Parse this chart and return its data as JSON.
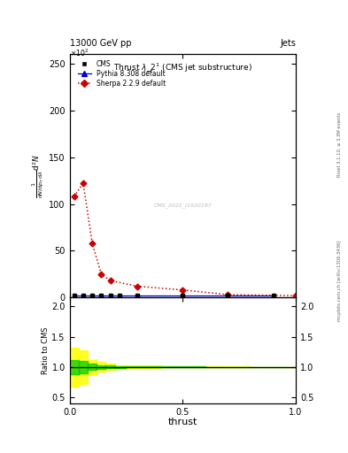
{
  "header_left": "13000 GeV pp",
  "header_right": "Jets",
  "right_label_top": "Rivet 3.1.10, ≥ 3.3M events",
  "right_label_bot": "mcplots.cern.ch [arXiv:1306.3436]",
  "watermark": "CMS_2021_I1920187",
  "xlabel": "thrust",
  "ylabel_main_lines": [
    "mathrm d²N",
    "―――――――――――――――――――――",
    "mathrm d N  mathrm d p_T mathrm d lambda"
  ],
  "ylabel_ratio": "Ratio to CMS",
  "ylim_main": [
    0,
    260
  ],
  "ylim_ratio": [
    0.4,
    2.15
  ],
  "yticks_main": [
    0,
    50,
    100,
    150,
    200,
    250
  ],
  "yticks_ratio": [
    0.5,
    1.0,
    1.5,
    2.0
  ],
  "xlim": [
    0,
    1.0
  ],
  "xticks": [
    0,
    0.5,
    1.0
  ],
  "cms_x": [
    0.02,
    0.06,
    0.1,
    0.14,
    0.18,
    0.22,
    0.3,
    0.5,
    0.7,
    0.9
  ],
  "cms_y": [
    2.5,
    2.5,
    2.5,
    2.5,
    2.5,
    2.5,
    2.5,
    2.5,
    2.5,
    2.5
  ],
  "pythia_x": [
    0.02,
    0.06,
    0.1,
    0.14,
    0.18,
    0.22,
    0.3,
    0.5,
    0.7,
    0.9
  ],
  "pythia_y": [
    2.5,
    2.5,
    2.5,
    2.5,
    2.5,
    2.5,
    2.5,
    2.5,
    2.5,
    2.5
  ],
  "sherpa_x": [
    0.02,
    0.06,
    0.1,
    0.14,
    0.18,
    0.3,
    0.5,
    0.7,
    1.0
  ],
  "sherpa_y": [
    108,
    122,
    58,
    25,
    18,
    12,
    8,
    3,
    2
  ],
  "ratio_yellow_lo": [
    0.68,
    0.72,
    0.88,
    0.92,
    0.95,
    0.97,
    0.98,
    0.99,
    0.995,
    0.998
  ],
  "ratio_yellow_hi": [
    1.32,
    1.28,
    1.12,
    1.08,
    1.05,
    1.03,
    1.02,
    1.01,
    1.005,
    1.002
  ],
  "ratio_green_lo": [
    0.88,
    0.9,
    0.95,
    0.97,
    0.98,
    0.985,
    0.99,
    0.995,
    0.997,
    0.999
  ],
  "ratio_green_hi": [
    1.12,
    1.1,
    1.05,
    1.03,
    1.02,
    1.015,
    1.01,
    1.005,
    1.003,
    1.001
  ],
  "ratio_bin_edges": [
    0.0,
    0.04,
    0.08,
    0.12,
    0.16,
    0.2,
    0.25,
    0.4,
    0.6,
    0.8,
    1.0
  ],
  "color_cms": "#000000",
  "color_pythia": "#0000cc",
  "color_sherpa": "#cc0000",
  "color_yellow": "#ffff00",
  "color_green": "#00cc00",
  "bg_color": "#ffffff"
}
